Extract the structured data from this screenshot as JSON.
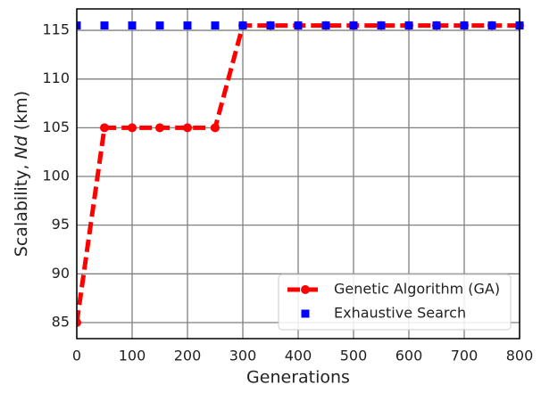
{
  "chart_data": {
    "type": "line",
    "xlabel": "Generations",
    "ylabel": [
      "Scalability, ",
      "Nd",
      " (km)"
    ],
    "x": [
      0,
      50,
      100,
      150,
      200,
      250,
      300,
      350,
      400,
      450,
      500,
      550,
      600,
      650,
      700,
      750,
      800
    ],
    "series": [
      {
        "name": "Genetic Algorithm (GA)",
        "color": "#ff0000",
        "style": "dashed-circle",
        "values": [
          85,
          105,
          105,
          105,
          105,
          105,
          115.5,
          115.5,
          115.5,
          115.5,
          115.5,
          115.5,
          115.5,
          115.5,
          115.5,
          115.5,
          115.5
        ]
      },
      {
        "name": "Exhaustive Search",
        "color": "#0000ff",
        "style": "square",
        "values": [
          115.5,
          115.5,
          115.5,
          115.5,
          115.5,
          115.5,
          115.5,
          115.5,
          115.5,
          115.5,
          115.5,
          115.5,
          115.5,
          115.5,
          115.5,
          115.5,
          115.5
        ]
      }
    ],
    "xlim": [
      0,
      800
    ],
    "xticks": [
      0,
      100,
      200,
      300,
      400,
      500,
      600,
      700,
      800
    ],
    "ylim": [
      83.35,
      117.2
    ],
    "yticks": [
      85,
      90,
      95,
      100,
      105,
      110,
      115
    ],
    "grid": true,
    "legend": "lower right"
  }
}
